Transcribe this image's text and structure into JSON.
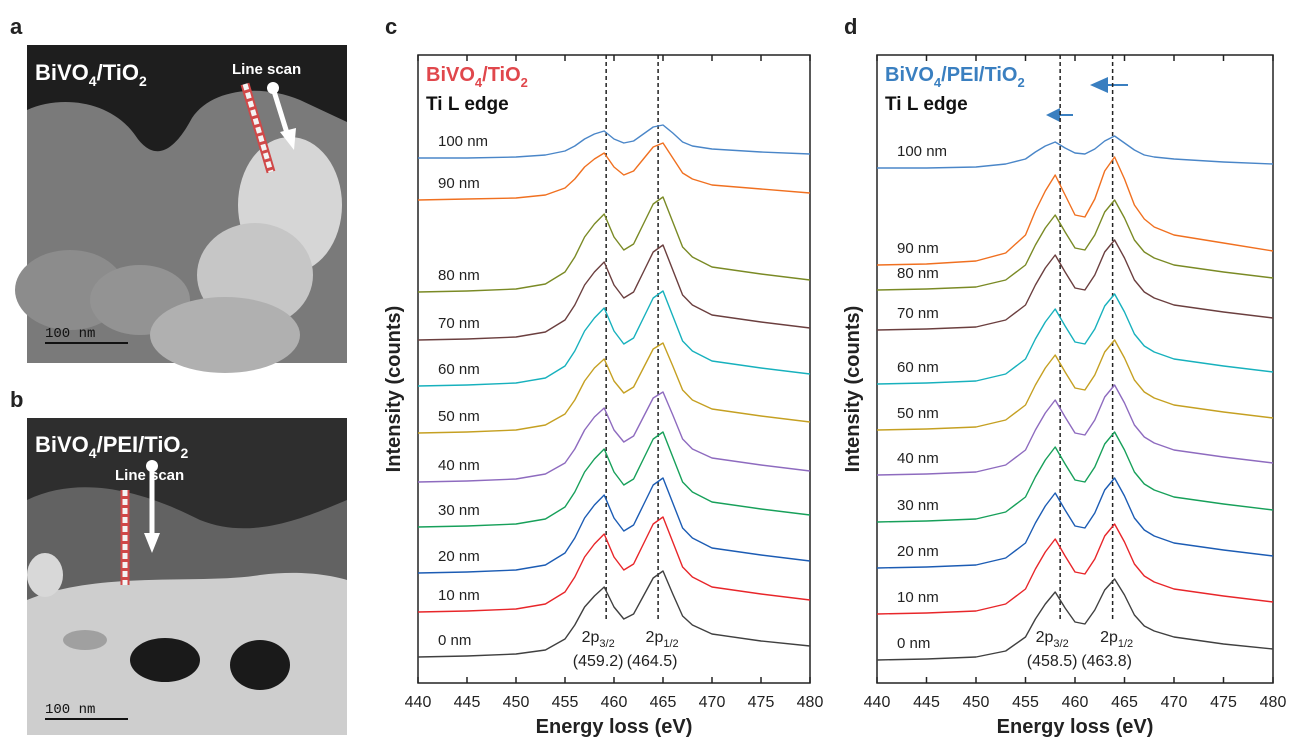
{
  "images": [
    {
      "label": "a",
      "title": [
        "BiVO",
        "4",
        "/TiO",
        "2"
      ],
      "annotation": "Line scan",
      "scale": "100 nm"
    },
    {
      "label": "b",
      "title": [
        "BiVO",
        "4",
        "/PEI/TiO",
        "2"
      ],
      "annotation": "Line scan",
      "scale": "100 nm"
    }
  ],
  "chart_data": [
    {
      "type": "line",
      "panel": "c",
      "title": [
        "BiVO",
        "4",
        "/TiO",
        "2"
      ],
      "title_color": "#e0474c",
      "subtitle": "Ti L edge",
      "xlabel": "Energy loss (eV)",
      "ylabel": "Intensity (counts)",
      "xlim": [
        440,
        480
      ],
      "xticks": [
        440,
        445,
        450,
        455,
        460,
        465,
        470,
        475,
        480
      ],
      "ylim": [
        0,
        628
      ],
      "x": [
        440,
        445,
        450,
        453,
        455,
        456,
        457,
        458,
        459,
        460,
        461,
        462,
        463,
        464,
        465,
        466,
        467,
        468,
        470,
        475,
        480
      ],
      "peaks": [
        {
          "name": "2p",
          "sub": "3/2",
          "value": 459.2,
          "label": "(459.2)"
        },
        {
          "name": "2p",
          "sub": "1/2",
          "value": 464.5,
          "label": "(464.5)"
        }
      ],
      "series": [
        {
          "name": "0 nm",
          "color": "#404040",
          "values": [
            26,
            27,
            29,
            33,
            44,
            58,
            76,
            87,
            96,
            76,
            64,
            69,
            87,
            105,
            112,
            89,
            67,
            58,
            49,
            42,
            37
          ]
        },
        {
          "name": "10 nm",
          "color": "#e8262a",
          "values": [
            71,
            72,
            74,
            79,
            91,
            106,
            126,
            139,
            149,
            126,
            113,
            119,
            139,
            159,
            166,
            141,
            116,
            106,
            96,
            89,
            83
          ]
        },
        {
          "name": "20 nm",
          "color": "#1c5cb4",
          "values": [
            110,
            111,
            113,
            118,
            130,
            145,
            165,
            178,
            188,
            165,
            152,
            158,
            178,
            198,
            205,
            180,
            155,
            145,
            135,
            128,
            122
          ]
        },
        {
          "name": "30 nm",
          "color": "#17a05a",
          "values": [
            156,
            157,
            159,
            164,
            176,
            191,
            211,
            224,
            234,
            211,
            198,
            204,
            224,
            244,
            251,
            226,
            201,
            191,
            181,
            174,
            168
          ]
        },
        {
          "name": "40 nm",
          "color": "#8e6bbf",
          "values": [
            201,
            202,
            204,
            209,
            220,
            234,
            253,
            266,
            275,
            253,
            241,
            247,
            266,
            285,
            291,
            268,
            244,
            234,
            225,
            218,
            212
          ]
        },
        {
          "name": "50 nm",
          "color": "#c5a022",
          "values": [
            250,
            251,
            253,
            258,
            269,
            283,
            302,
            315,
            324,
            302,
            290,
            296,
            315,
            334,
            340,
            317,
            293,
            283,
            274,
            267,
            261
          ]
        },
        {
          "name": "60 nm",
          "color": "#17b1bd",
          "values": [
            297,
            298,
            300,
            305,
            317,
            332,
            352,
            365,
            375,
            352,
            339,
            345,
            365,
            385,
            392,
            367,
            342,
            332,
            322,
            315,
            309
          ]
        },
        {
          "name": "70 nm",
          "color": "#6b3f3f",
          "values": [
            343,
            344,
            346,
            351,
            363,
            378,
            398,
            411,
            421,
            398,
            385,
            391,
            411,
            431,
            438,
            413,
            388,
            378,
            368,
            361,
            355
          ]
        },
        {
          "name": "80 nm",
          "color": "#7a8a25",
          "values": [
            391,
            392,
            394,
            399,
            411,
            426,
            446,
            459,
            469,
            446,
            433,
            439,
            459,
            479,
            486,
            461,
            436,
            426,
            416,
            409,
            403
          ]
        },
        {
          "name": "90 nm",
          "color": "#f07020",
          "values": [
            483,
            484,
            485,
            488,
            495,
            504,
            516,
            524,
            530,
            516,
            508,
            512,
            524,
            536,
            540,
            525,
            510,
            504,
            498,
            494,
            490
          ]
        },
        {
          "name": "100 nm",
          "color": "#4a86c8",
          "values": [
            525,
            525,
            526,
            528,
            532,
            537,
            544,
            549,
            552,
            544,
            540,
            542,
            549,
            556,
            558,
            550,
            541,
            537,
            534,
            531,
            529
          ]
        }
      ]
    },
    {
      "type": "line",
      "panel": "d",
      "title": [
        "BiVO",
        "4",
        "/PEI/TiO",
        "2"
      ],
      "title_color": "#3a7fc0",
      "subtitle": "Ti L edge",
      "xlabel": "Energy loss (eV)",
      "ylabel": "Intensity (counts)",
      "xlim": [
        440,
        480
      ],
      "xticks": [
        440,
        445,
        450,
        455,
        460,
        465,
        470,
        475,
        480
      ],
      "ylim": [
        0,
        628
      ],
      "x": [
        440,
        445,
        450,
        453,
        455,
        456,
        457,
        458,
        459,
        460,
        461,
        462,
        463,
        464,
        465,
        466,
        467,
        468,
        470,
        475,
        480
      ],
      "peaks": [
        {
          "name": "2p",
          "sub": "3/2",
          "value": 458.5,
          "label": "(458.5)"
        },
        {
          "name": "2p",
          "sub": "1/2",
          "value": 463.8,
          "label": "(463.8)"
        }
      ],
      "series": [
        {
          "name": "0 nm",
          "color": "#404040",
          "values": [
            23,
            24,
            26,
            32,
            46,
            64,
            79,
            91,
            75,
            61,
            59,
            73,
            93,
            104,
            88,
            68,
            57,
            52,
            46,
            39,
            34
          ]
        },
        {
          "name": "10 nm",
          "color": "#e8262a",
          "values": [
            69,
            70,
            72,
            79,
            94,
            114,
            131,
            144,
            127,
            111,
            109,
            124,
            147,
            159,
            141,
            119,
            107,
            101,
            94,
            87,
            81
          ]
        },
        {
          "name": "20 nm",
          "color": "#1c5cb4",
          "values": [
            115,
            116,
            118,
            125,
            140,
            160,
            177,
            190,
            173,
            157,
            155,
            170,
            193,
            205,
            187,
            165,
            153,
            147,
            140,
            133,
            127
          ]
        },
        {
          "name": "30 nm",
          "color": "#17a05a",
          "values": [
            161,
            162,
            164,
            171,
            186,
            206,
            223,
            236,
            219,
            203,
            201,
            216,
            239,
            251,
            233,
            211,
            199,
            193,
            186,
            179,
            173
          ]
        },
        {
          "name": "40 nm",
          "color": "#8e6bbf",
          "values": [
            208,
            209,
            211,
            218,
            233,
            253,
            270,
            283,
            266,
            250,
            248,
            263,
            286,
            298,
            280,
            258,
            246,
            240,
            233,
            226,
            220
          ]
        },
        {
          "name": "50 nm",
          "color": "#c5a022",
          "values": [
            253,
            254,
            256,
            263,
            278,
            298,
            315,
            328,
            311,
            295,
            293,
            308,
            331,
            343,
            325,
            303,
            291,
            285,
            278,
            271,
            265
          ]
        },
        {
          "name": "60 nm",
          "color": "#17b1bd",
          "values": [
            299,
            300,
            302,
            309,
            324,
            344,
            361,
            374,
            357,
            341,
            339,
            354,
            377,
            389,
            371,
            349,
            337,
            331,
            324,
            317,
            311
          ]
        },
        {
          "name": "70 nm",
          "color": "#6b3f3f",
          "values": [
            353,
            354,
            356,
            363,
            378,
            398,
            415,
            428,
            411,
            395,
            393,
            408,
            431,
            443,
            425,
            403,
            391,
            385,
            378,
            371,
            365
          ]
        },
        {
          "name": "80 nm",
          "color": "#7a8a25",
          "values": [
            393,
            394,
            396,
            403,
            418,
            438,
            455,
            468,
            451,
            435,
            433,
            448,
            471,
            483,
            465,
            443,
            431,
            425,
            418,
            411,
            405
          ]
        },
        {
          "name": "90 nm",
          "color": "#f07020",
          "values": [
            418,
            419,
            422,
            430,
            448,
            472,
            492,
            508,
            488,
            468,
            466,
            484,
            512,
            526,
            504,
            478,
            464,
            456,
            448,
            440,
            432
          ]
        },
        {
          "name": "100 nm",
          "color": "#4a86c8",
          "values": [
            515,
            515,
            516,
            519,
            524,
            531,
            537,
            541,
            535,
            530,
            529,
            534,
            542,
            547,
            540,
            533,
            528,
            526,
            524,
            521,
            519
          ]
        }
      ]
    }
  ]
}
